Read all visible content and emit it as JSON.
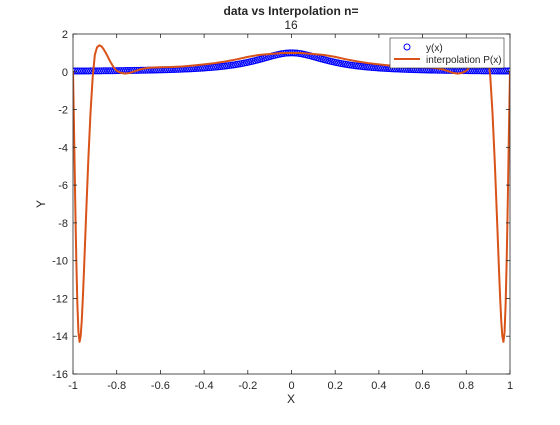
{
  "chart_data": {
    "type": "line",
    "title": [
      "data vs Interpolation n=",
      "16"
    ],
    "xlabel": "X",
    "ylabel": "Y",
    "xlim": [
      -1,
      1
    ],
    "ylim": [
      -16,
      2
    ],
    "xticks": [
      -1,
      -0.8,
      -0.6,
      -0.4,
      -0.2,
      0,
      0.2,
      0.4,
      0.6,
      0.8,
      1
    ],
    "xtick_labels": [
      "-1",
      "-0.8",
      "-0.6",
      "-0.4",
      "-0.2",
      "0",
      "0.2",
      "0.4",
      "0.6",
      "0.8",
      "1"
    ],
    "yticks": [
      -16,
      -14,
      -12,
      -10,
      -8,
      -6,
      -4,
      -2,
      0,
      2
    ],
    "ytick_labels": [
      "-16",
      "-14",
      "-12",
      "-10",
      "-8",
      "-6",
      "-4",
      "-2",
      "0",
      "2"
    ],
    "grid": false,
    "legend_position": "top-right",
    "series": [
      {
        "name": "y(x)",
        "style": "markers",
        "marker": "circle",
        "color": "#0000ff",
        "function": "1/(1+25*x^2)",
        "x_range": [
          -1,
          1
        ],
        "point_count": 200
      },
      {
        "name": "interpolation P(x)",
        "style": "line",
        "color": "#d95319",
        "x": [
          -1,
          -0.995,
          -0.99,
          -0.985,
          -0.98,
          -0.975,
          -0.97,
          -0.965,
          -0.96,
          -0.955,
          -0.95,
          -0.94,
          -0.93,
          -0.92,
          -0.91,
          -0.9,
          -0.89,
          -0.88,
          -0.87,
          -0.86,
          -0.85,
          -0.84,
          -0.83,
          -0.82,
          -0.81,
          -0.8,
          -0.78,
          -0.76,
          -0.74,
          -0.72,
          -0.7,
          -0.68,
          -0.66,
          -0.64,
          -0.62,
          -0.6,
          -0.55,
          -0.5,
          -0.45,
          -0.4,
          -0.35,
          -0.3,
          -0.25,
          -0.2,
          -0.15,
          -0.1,
          -0.05,
          0,
          0.05,
          0.1,
          0.15,
          0.2,
          0.25,
          0.3,
          0.35,
          0.4,
          0.45,
          0.5,
          0.55,
          0.6,
          0.62,
          0.64,
          0.66,
          0.68,
          0.7,
          0.72,
          0.74,
          0.76,
          0.78,
          0.8,
          0.81,
          0.82,
          0.83,
          0.84,
          0.85,
          0.86,
          0.87,
          0.88,
          0.89,
          0.9,
          0.91,
          0.92,
          0.93,
          0.94,
          0.95,
          0.955,
          0.96,
          0.965,
          0.97,
          0.975,
          0.98,
          0.985,
          0.99,
          0.995,
          1
        ],
        "y": [
          0.04,
          -3.2,
          -6.8,
          -9.9,
          -12.3,
          -13.8,
          -14.3,
          -14.0,
          -13.2,
          -12.0,
          -10.6,
          -7.6,
          -4.7,
          -2.2,
          -0.3,
          0.9,
          1.3,
          1.4,
          1.35,
          1.2,
          1.0,
          0.78,
          0.55,
          0.35,
          0.18,
          0.05,
          -0.06,
          -0.1,
          -0.06,
          0.02,
          0.1,
          0.16,
          0.2,
          0.22,
          0.23,
          0.24,
          0.25,
          0.28,
          0.33,
          0.39,
          0.46,
          0.55,
          0.66,
          0.79,
          0.89,
          0.94,
          0.99,
          1.0,
          0.99,
          0.94,
          0.89,
          0.79,
          0.66,
          0.55,
          0.46,
          0.39,
          0.33,
          0.28,
          0.25,
          0.24,
          0.23,
          0.22,
          0.2,
          0.16,
          0.1,
          0.02,
          -0.06,
          -0.1,
          -0.06,
          0.05,
          0.18,
          0.35,
          0.55,
          0.78,
          1.0,
          1.2,
          1.35,
          1.4,
          1.3,
          0.9,
          -0.3,
          -2.2,
          -4.7,
          -7.6,
          -10.6,
          -12.0,
          -13.2,
          -14.0,
          -14.3,
          -13.8,
          -12.3,
          -9.9,
          -6.8,
          -3.2,
          0.04
        ]
      }
    ]
  }
}
